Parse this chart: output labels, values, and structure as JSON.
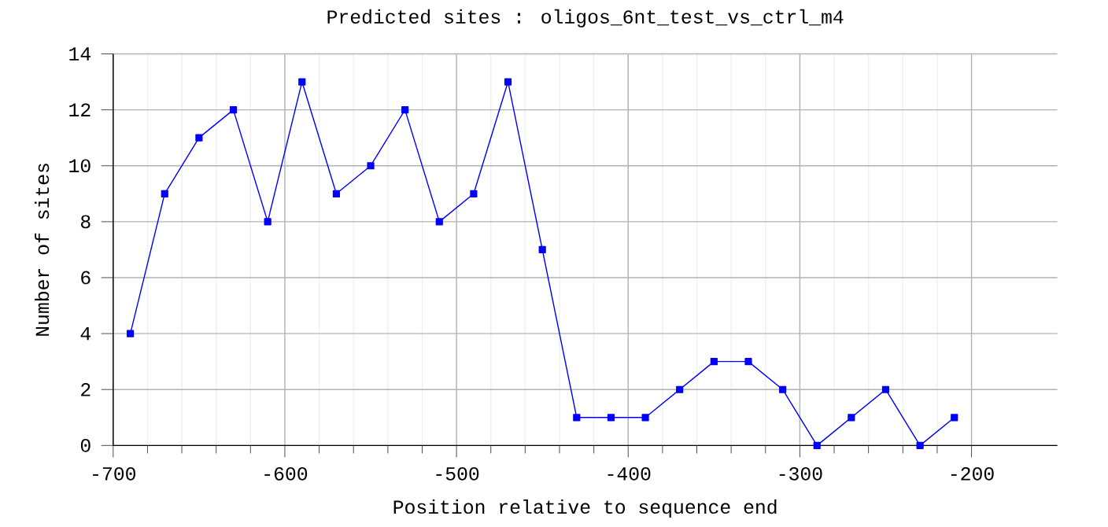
{
  "chart_data": {
    "type": "line",
    "title": "Predicted sites : oligos_6nt_test_vs_ctrl_m4",
    "xlabel": "Position relative to sequence end",
    "ylabel": "Number of sites",
    "x": [
      -690,
      -670,
      -650,
      -630,
      -610,
      -590,
      -570,
      -550,
      -530,
      -510,
      -490,
      -470,
      -450,
      -430,
      -410,
      -390,
      -370,
      -350,
      -330,
      -310,
      -290,
      -270,
      -250,
      -230,
      -210
    ],
    "series": [
      {
        "color": "#0000ff",
        "values": [
          4,
          9,
          11,
          12,
          8,
          13,
          9,
          10,
          12,
          8,
          9,
          13,
          7,
          1,
          1,
          1,
          2,
          3,
          3,
          2,
          0,
          1,
          2,
          0,
          1
        ]
      }
    ],
    "xlim": [
      -700,
      -150
    ],
    "xticks": [
      -700,
      -600,
      -500,
      -400,
      -300,
      -200
    ],
    "ylim": [
      0,
      14
    ],
    "yticks": [
      0,
      2,
      4,
      6,
      8,
      10,
      12,
      14
    ],
    "grid": true,
    "marker": "square",
    "line_style": "solid"
  }
}
